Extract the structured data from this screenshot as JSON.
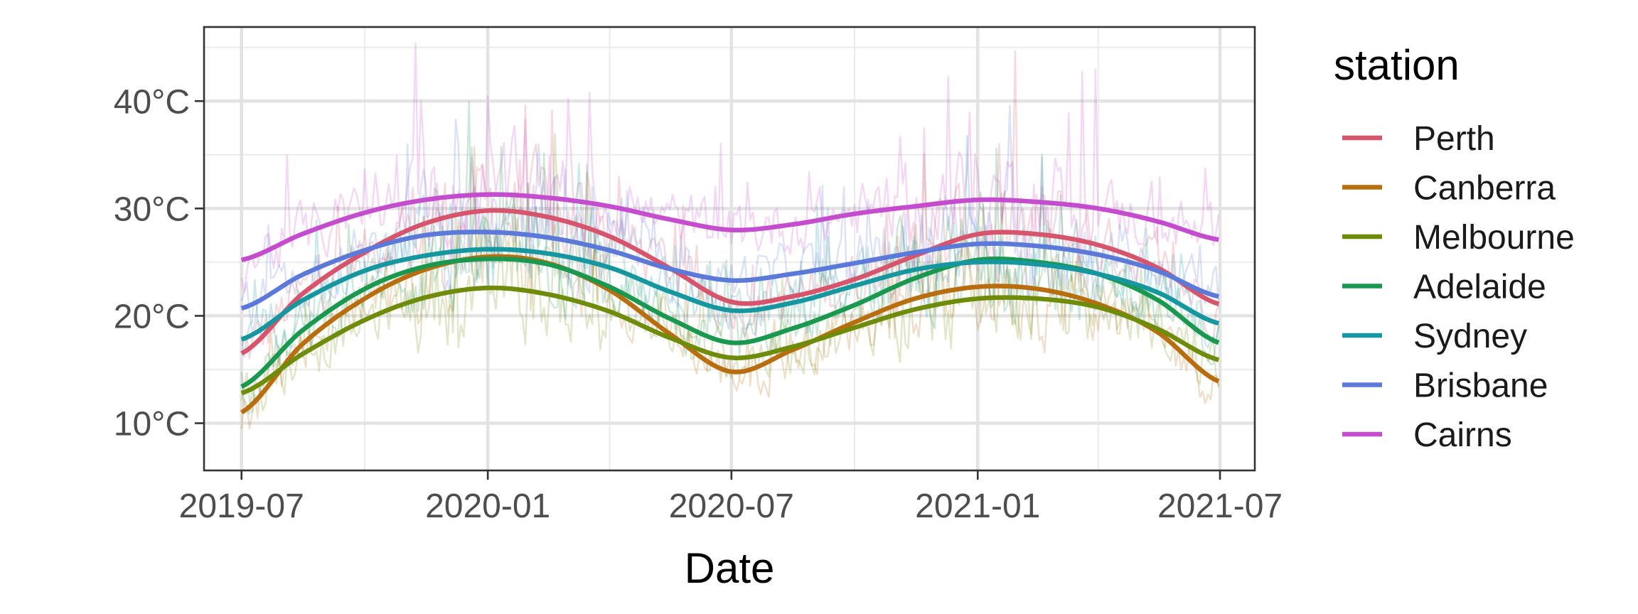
{
  "chart_data": {
    "type": "line",
    "title": "",
    "xlabel": "Date",
    "ylabel": "",
    "x_axis_type": "date",
    "xlim": [
      "2019-06-03",
      "2021-07-27"
    ],
    "ylim": [
      5.6,
      46.9
    ],
    "x_ticks": [
      {
        "value": "2019-07-01",
        "label": "2019-07"
      },
      {
        "value": "2020-01-01",
        "label": "2020-01"
      },
      {
        "value": "2020-07-01",
        "label": "2020-07"
      },
      {
        "value": "2021-01-01",
        "label": "2021-01"
      },
      {
        "value": "2021-07-01",
        "label": "2021-07"
      }
    ],
    "x_minor_ticks": [
      "2019-10-01",
      "2020-04-01",
      "2020-10-01",
      "2021-04-01"
    ],
    "y_ticks": [
      {
        "value": 10,
        "label": "10°C"
      },
      {
        "value": 20,
        "label": "20°C"
      },
      {
        "value": 30,
        "label": "30°C"
      },
      {
        "value": 40,
        "label": "40°C"
      }
    ],
    "y_minor_ticks": [
      15,
      25,
      35,
      45
    ],
    "grid": true,
    "legend": {
      "title": "station",
      "position": "right"
    },
    "x": [
      "2019-07-01",
      "2019-08-15",
      "2019-10-01",
      "2019-11-15",
      "2020-01-01",
      "2020-02-15",
      "2020-04-01",
      "2020-05-15",
      "2020-07-01",
      "2020-08-15",
      "2020-10-01",
      "2020-11-15",
      "2021-01-01",
      "2021-02-15",
      "2021-04-01",
      "2021-05-15",
      "2021-06-30"
    ],
    "series": [
      {
        "name": "Perth",
        "color": "#d6546c",
        "values": [
          16.5,
          22,
          25.9,
          28.6,
          29.8,
          29.2,
          27.4,
          24.5,
          21.3,
          21.8,
          23.4,
          25.6,
          27.6,
          27.6,
          26.6,
          24.5,
          21.1
        ]
      },
      {
        "name": "Canberra",
        "color": "#b86d0f",
        "values": [
          11.0,
          17.3,
          21.6,
          24.3,
          25.5,
          24.9,
          22.4,
          18.4,
          14.8,
          16.8,
          19.4,
          21.6,
          22.7,
          22.5,
          21.1,
          18.5,
          13.9
        ]
      },
      {
        "name": "Melbourne",
        "color": "#6e8b0a",
        "values": [
          12.8,
          16.4,
          19.6,
          21.7,
          22.6,
          22.0,
          20.4,
          18.0,
          16.1,
          17.1,
          18.9,
          20.6,
          21.6,
          21.6,
          20.8,
          18.8,
          15.9
        ]
      },
      {
        "name": "Adelaide",
        "color": "#1a9850",
        "values": [
          13.4,
          18.6,
          22.5,
          24.6,
          25.3,
          24.8,
          22.7,
          19.8,
          17.5,
          18.8,
          21.0,
          23.5,
          25.2,
          25.0,
          23.9,
          21.5,
          17.5
        ]
      },
      {
        "name": "Sydney",
        "color": "#16969f",
        "values": [
          17.8,
          21.4,
          24.2,
          25.6,
          26.2,
          25.8,
          24.5,
          22.3,
          20.5,
          21.2,
          22.8,
          24.3,
          25.0,
          24.8,
          23.9,
          22.2,
          19.3
        ]
      },
      {
        "name": "Brisbane",
        "color": "#5b79d9",
        "values": [
          20.7,
          23.8,
          26.1,
          27.5,
          27.8,
          27.3,
          26.1,
          24.4,
          23.3,
          23.9,
          24.9,
          25.9,
          26.7,
          26.5,
          25.7,
          24.2,
          21.8
        ]
      },
      {
        "name": "Cairns",
        "color": "#c34dcc",
        "values": [
          25.2,
          27.6,
          29.6,
          30.8,
          31.3,
          31.0,
          30.2,
          29.0,
          28.0,
          28.5,
          29.5,
          30.2,
          30.8,
          30.6,
          30.0,
          28.8,
          27.1
        ]
      }
    ]
  }
}
